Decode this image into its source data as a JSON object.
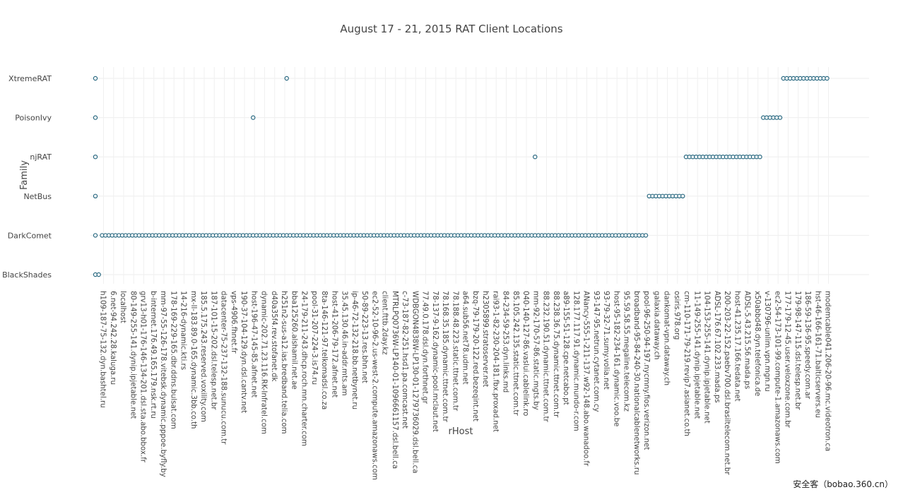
{
  "chart_data": {
    "type": "scatter",
    "title": "August 17 - 21, 2015 RAT Client Locations",
    "xlabel": "rHost",
    "ylabel": "Family",
    "grid": true,
    "legend": "none",
    "marker": {
      "shape": "open-circle",
      "color": "#2b6a82"
    },
    "y_categories": [
      "BlackShades",
      "DarkComet",
      "NetBus",
      "njRAT",
      "PoisonIvy",
      "XtremeRAT"
    ],
    "x_tick_labels": [
      "h109-187-75-132.dyn.bashtel.ru",
      "6.net-94.242.28.kaluga.ru",
      "localhost",
      "80-149-255-141.dynip.ipjetable.net",
      "grv13-h01-176-146-134-201.dsl.sta.abo.bbox.fr",
      "b-internet.176.49.165.179.nsk.rt.ru",
      "mm-97-55-126-178.vitebsk.dynamic.pppoe.byfly.by",
      "178-169-229-165.dbr.ddns.bulsat.com",
      "14-216-dynamic.kti.rs",
      "mx-ll-183.89.0-165.dynamic.3bb.co.th",
      "185.5.175.243.reserved.voxility.com",
      "187-101-15-202.dsl.telesp.net.br",
      "datacenter-75-237-132-188.sunucu.com.tr",
      "vps-4906.fhnet.fr",
      "190-37-104-129.dyn.dsl.cantv.net",
      "host-196-47-145-85.afnet.net",
      "dynamic-202.71.23.116.RK-Infratel.com",
      "d40a35f4.rev.stofanet.dk",
      "h251n2-sus-a12.ias.bredband.telia.com",
      "bba125260.alshamil.net.ae",
      "24-179-211-243.dhcp.roch.mn.charter.com",
      "pool-31-207-224-3.is74.ru",
      "8ta-146-121-97.telkomadsl.co.za",
      "host-41-206-79-172.afnet.net",
      "35.45.130.46.in-addr.mts.am",
      "ip-46-72-132-218.bb.netbynet.ru",
      "50-89-223-13.res.bhn.net",
      "ec2-52-10-96-2.us-west-2.compute.amazonaws.com",
      "client.fttb.2day.kz",
      "MTRLPQ0736W-LP140-01-1096661157.dsl.bell.ca",
      "c-73-187-82-251.hsd1.pa.comcast.net",
      "WDBGON4838W-LP130-01-1279736029.dsl.bell.ca",
      "77.49.0.178.dsl.dyn.forthnet.gr",
      "78-137-9-162.dynamic-pool.mclaut.net",
      "78.168.35.185.dynamic.ttnet.com.tr",
      "78.188.48.223.static.ttnet.com.tr",
      "a64.sub56.net78.udm.net",
      "bzq-79-179-20-122.red.bezeqint.net",
      "h2305899.stratoserver.net",
      "rai93-1-82-230-204-181.fbx.proxad.net",
      "84-234-59-253.dyn.links.md",
      "85.105.242.135.static.ttnet.com.tr",
      "040-140-127-86.vaslui.cablelink.ro",
      "mm-92-170-57-86.static.mgts.by",
      "88.232.190.51.dynamic.ttnet.com.tr",
      "88.238.36.75.dynamic.ttnet.com.tr",
      "a89-155-51-128.cpe.netcabo.pt",
      "128.177.117.91.dynamic.mundo-r.com",
      "ANancy-555-1-211-137.w92-148.abo.wanadoo.fr",
      "93-147-95.netrun.cytanet.com.cy",
      "93-79-32-71.sumy.volia.net",
      "host-95-182-234-161.dynamic.voo.be",
      "95.59.58.55.megaline.telecom.kz",
      "broadband-95-84-240-30.nationalcablenetworks.ru",
      "pool-96-250-94-197.nycmny.fios.verizon.net",
      "galaxia.dataway.ch",
      "dankomat-vpn.dataway.ch",
      "osiris.978.org",
      "cm-110-171-79-219.revip7.asianet.co.th",
      "11-149-255-141.dynip.ipjetable.net",
      "104-153-255-141.dynip.ipjetable.net",
      "ADSL-176.67.102.233.mada.ps",
      "200-203-22-152.paebv700.dsl.brasiltelecom.net.br",
      "host-41.235.17.166.tedata.net",
      "ADSL-5.43.215.56.mada.ps",
      "x50abbd48.dyn.telefonica.de",
      "v-130796-unlim.vpn.mgn.ru",
      "ec2-54-173-101-99.compute-1.amazonaws.com",
      "177-179-12-45.user.veloxzone.com.br",
      "179-98-147-115.dsl.telesp.net.br",
      "186-59-136-95.speedy.com.ar",
      "hst-46-166-161-71.balticservers.eu",
      "modemcable041.206-20-96.mc.videotron.ca"
    ],
    "series": [
      {
        "family": "BlackShades",
        "x_index_ranges": [
          [
            0,
            1
          ]
        ]
      },
      {
        "family": "DarkComet",
        "x_index_ranges": [
          [
            0,
            0
          ],
          [
            2,
            164
          ]
        ]
      },
      {
        "family": "NetBus",
        "x_index_ranges": [
          [
            0,
            0
          ],
          [
            165,
            175
          ]
        ]
      },
      {
        "family": "njRAT",
        "x_index_ranges": [
          [
            0,
            0
          ],
          [
            131,
            131
          ],
          [
            176,
            198
          ]
        ]
      },
      {
        "family": "PoisonIvy",
        "x_index_ranges": [
          [
            0,
            0
          ],
          [
            47,
            47
          ],
          [
            199,
            204
          ]
        ]
      },
      {
        "family": "XtremeRAT",
        "x_index_ranges": [
          [
            0,
            0
          ],
          [
            57,
            57
          ],
          [
            205,
            218
          ]
        ]
      }
    ]
  },
  "watermark": "安全客（bobao.360.cn）"
}
